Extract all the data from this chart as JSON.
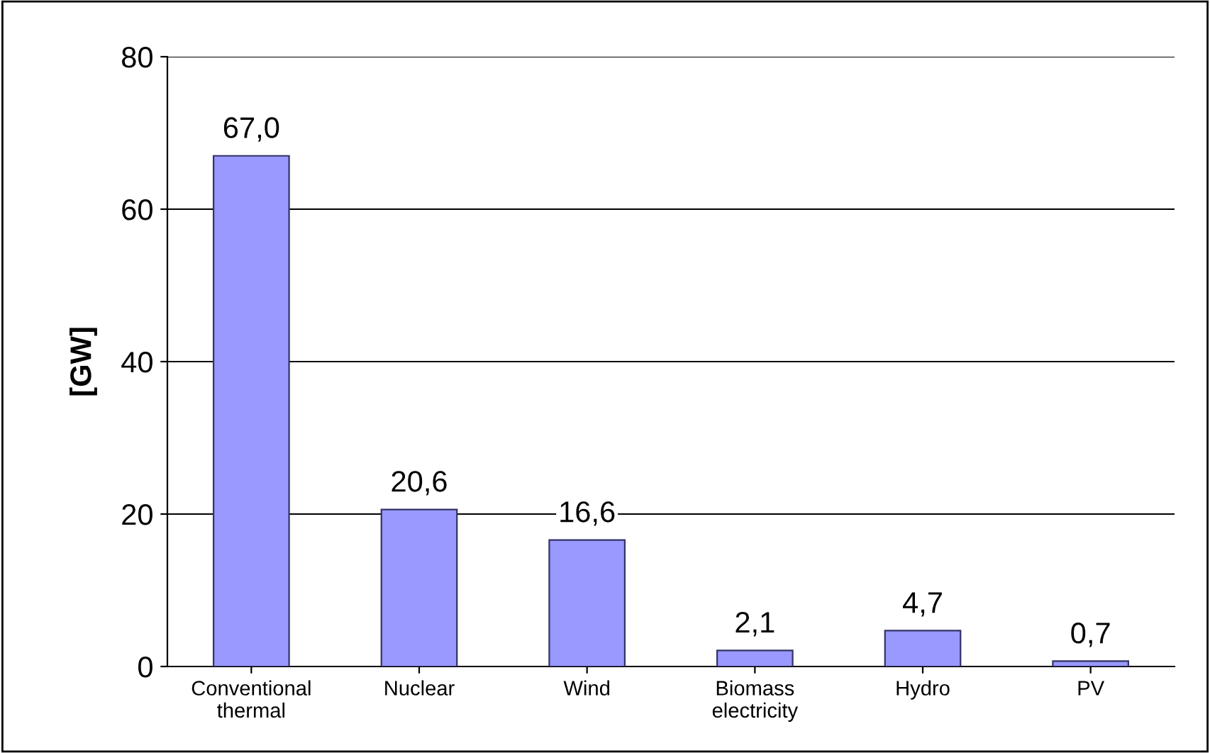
{
  "chart_data": {
    "type": "bar",
    "ylabel": "[GW]",
    "categories": [
      "Conventional\nthermal",
      "Nuclear",
      "Wind",
      "Biomass\nelectricity",
      "Hydro",
      "PV"
    ],
    "values": [
      67.0,
      20.6,
      16.6,
      2.1,
      4.7,
      0.7
    ],
    "value_labels": [
      "67,0",
      "20,6",
      "16,6",
      "2,1",
      "4,7",
      "0,7"
    ],
    "color": "#9999ff",
    "ylim": [
      0,
      80
    ],
    "yticks": [
      0,
      20,
      40,
      60,
      80
    ],
    "grid": "y",
    "legend": false
  }
}
